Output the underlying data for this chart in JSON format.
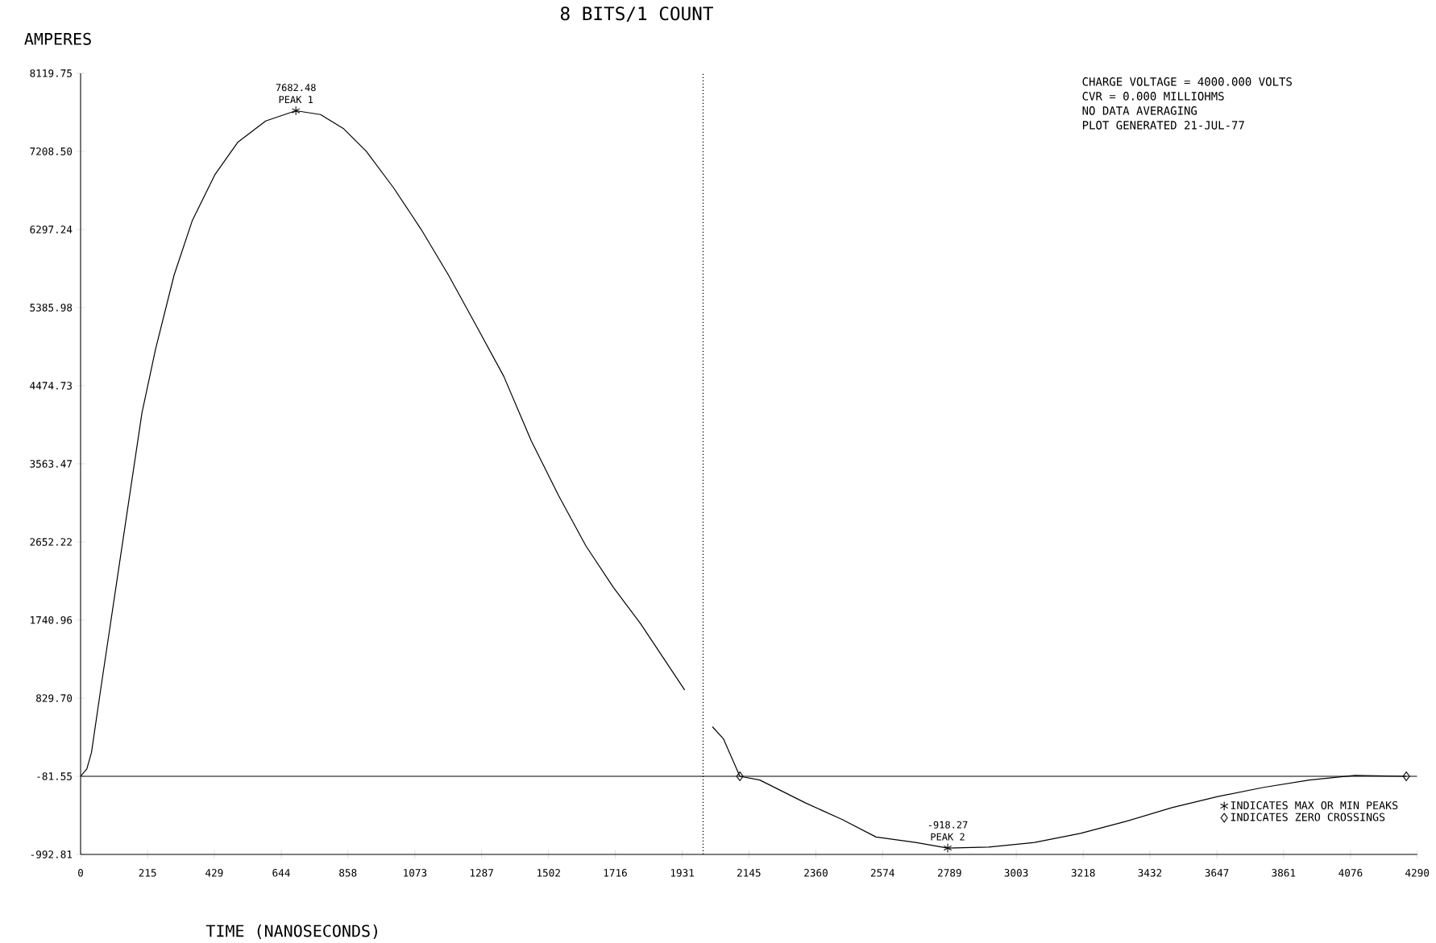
{
  "chart_data": {
    "type": "line",
    "title": "8 BITS/1 COUNT",
    "xlabel": "TIME (NANOSECONDS)",
    "ylabel": "AMPERES",
    "xlim": [
      0,
      4290
    ],
    "ylim": [
      -992.81,
      8119.75
    ],
    "xticks": [
      0,
      215,
      429,
      644,
      858,
      1073,
      1287,
      1502,
      1716,
      1931,
      2145,
      2360,
      2574,
      2789,
      3003,
      3218,
      3432,
      3647,
      3861,
      4076,
      4290
    ],
    "yticks": [
      -992.81,
      -81.55,
      {
        "value": 829.7,
        "label": "829.70"
      },
      1740.96,
      2652.22,
      3563.47,
      4474.73,
      5385.98,
      6297.24,
      {
        "value": 7208.5,
        "label": "7208.50"
      },
      8119.75
    ],
    "legend": "bottom right",
    "series": [
      {
        "color": "#000000",
        "x": [
          0,
          20,
          35,
          65,
          109,
          153,
          197,
          241,
          300,
          359,
          432,
          505,
          594,
          691,
          770,
          843,
          917,
          1005,
          1093,
          1181,
          1270,
          1358,
          1446,
          1534,
          1622,
          1710,
          1798,
          1939,
          1990,
          2028,
          2063,
          2116,
          2180,
          2327,
          2445,
          2553,
          2680,
          2783,
          2915,
          3062,
          3209,
          3356,
          3503,
          3650,
          3797,
          3944,
          4090,
          4255
        ],
        "values": [
          -81.55,
          4,
          196,
          945,
          2016,
          3087,
          4158,
          4907,
          5764,
          6406,
          6942,
          7317,
          7563,
          7682.48,
          7638,
          7477,
          7210,
          6781,
          6299,
          5764,
          5175,
          4586,
          3836,
          3194,
          2605,
          2123,
          1695,
          924,
          null,
          496,
          357,
          -81.55,
          -125,
          -393,
          -586,
          -790,
          -854,
          -918.27,
          -907,
          -854,
          -747,
          -607,
          -447,
          -318,
          -211,
          -125,
          -71,
          -81.55
        ]
      },
      {
        "type": "scatter",
        "name": "INDICATES MAX OR MIN PEAKS",
        "color": "#000000",
        "marker": "cross",
        "x": [
          691,
          2783
        ],
        "values": [
          7682.48,
          -918.27
        ],
        "value_labels": [
          "7682.48",
          "-918.27"
        ]
      },
      {
        "type": "scatter",
        "name": "INDICATES ZERO CROSSINGS",
        "color": "#000000",
        "marker": "diamond",
        "x": [
          2116,
          4255
        ],
        "values": [
          -81.55,
          -81.55
        ]
      }
    ],
    "ref_lines": [
      {
        "axis": "y",
        "value": -81.55,
        "color": "#000000",
        "line_style": "solid"
      },
      {
        "axis": "x",
        "value": 1998,
        "color": "#000000",
        "line_style": "dotted"
      }
    ],
    "annotations": [
      "CHARGE VOLTAGE = 4000.000 VOLTS",
      "CVR = 0.000 MILLIOHMS",
      "NO DATA AVERAGING",
      "PLOT GENERATED 21-JUL-77",
      {
        "text": "PEAK 1",
        "x": 691,
        "y": 7682.48
      },
      {
        "text": "PEAK 2",
        "x": 2783,
        "y": -918.27
      }
    ]
  }
}
